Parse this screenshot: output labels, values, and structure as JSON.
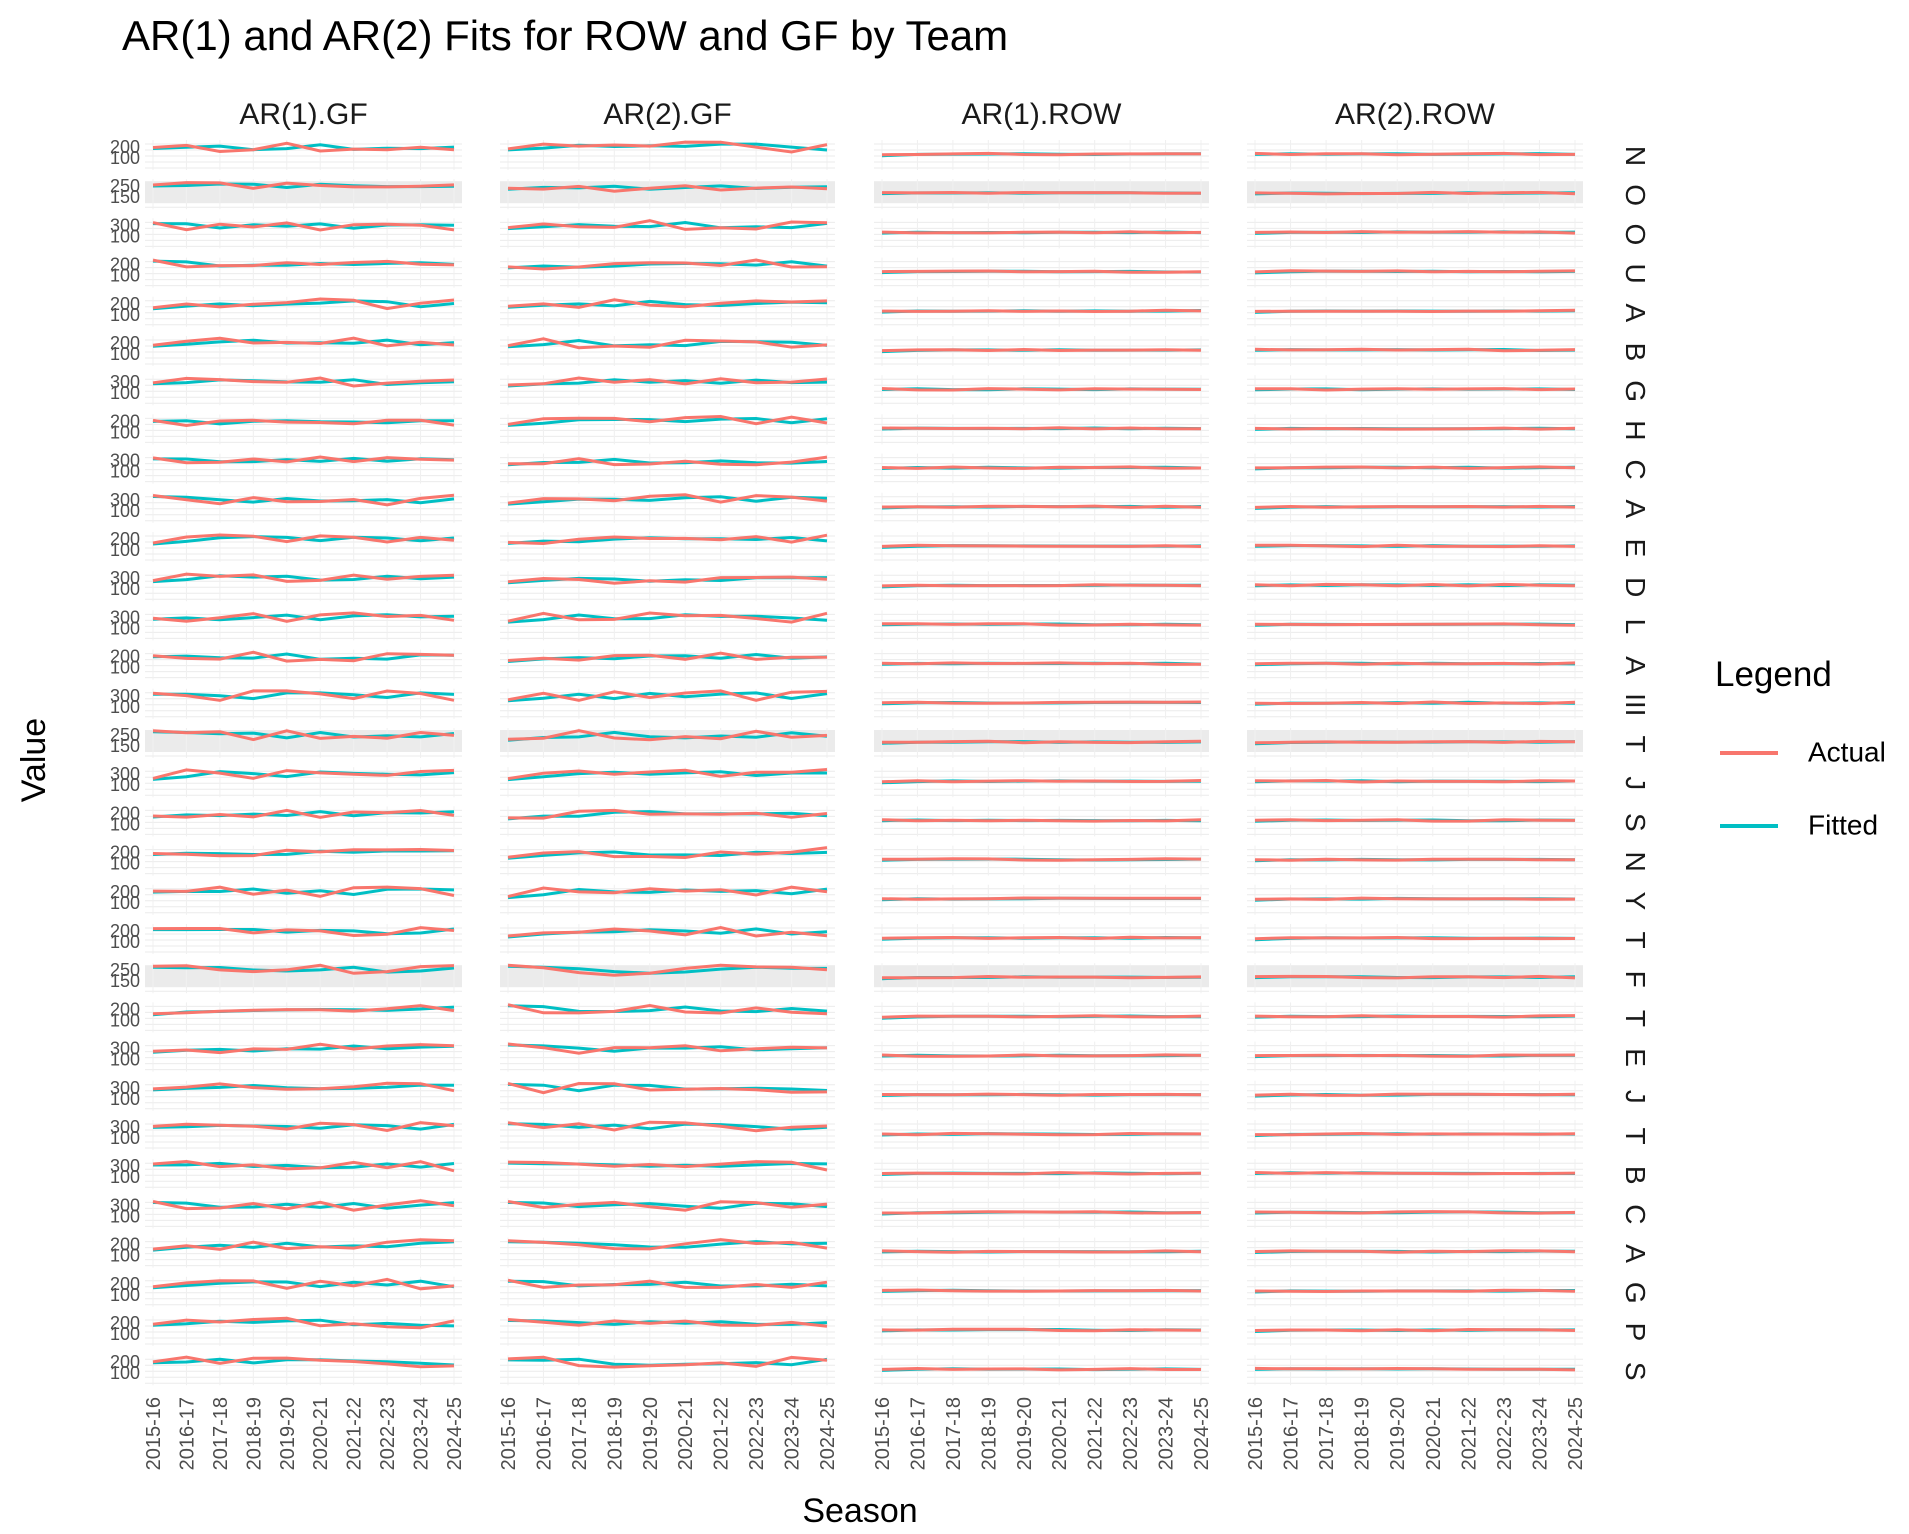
{
  "chart_data": {
    "type": "line",
    "title": "AR(1) and AR(2) Fits for ROW and GF by Team",
    "xlabel": "Season",
    "ylabel": "Value",
    "x": [
      "2015-16",
      "2016-17",
      "2017-18",
      "2018-19",
      "2019-20",
      "2020-21",
      "2021-22",
      "2022-23",
      "2023-24",
      "2024-25"
    ],
    "facet_columns": [
      "AR(1).GF",
      "AR(2).GF",
      "AR(1).ROW",
      "AR(2).ROW"
    ],
    "facet_rows": [
      "N",
      "O",
      "O",
      "U",
      "A",
      "B",
      "G",
      "H",
      "C",
      "A",
      "E",
      "D",
      "L",
      "A",
      "III",
      "T",
      "J",
      "S",
      "N",
      "Y",
      "T",
      "F",
      "T",
      "E",
      "J",
      "T",
      "B",
      "C",
      "A",
      "G",
      "P",
      "S"
    ],
    "y_tick_labels": {
      "gf_default": [
        "200",
        "100"
      ],
      "gf_variants": [
        [
          "200",
          "100"
        ],
        [
          "250",
          "150"
        ],
        [
          "300",
          "100"
        ],
        [
          "200",
          "100"
        ],
        [
          "200",
          "100"
        ],
        [
          "200",
          "100"
        ],
        [
          "300",
          "100"
        ],
        [
          "200",
          "100"
        ],
        [
          "300",
          "100"
        ],
        [
          "300",
          "100"
        ],
        [
          "200",
          "100"
        ],
        [
          "300",
          "100"
        ],
        [
          "300",
          "100"
        ],
        [
          "200",
          "100"
        ],
        [
          "300",
          "100"
        ],
        [
          "250",
          "150"
        ],
        [
          "300",
          "100"
        ],
        [
          "200",
          "100"
        ],
        [
          "200",
          "100"
        ],
        [
          "200",
          "100"
        ],
        [
          "200",
          "100"
        ],
        [
          "250",
          "150"
        ],
        [
          "200",
          "100"
        ],
        [
          "300",
          "100"
        ],
        [
          "300",
          "100"
        ],
        [
          "300",
          "100"
        ],
        [
          "300",
          "100"
        ],
        [
          "300",
          "100"
        ],
        [
          "200",
          "100"
        ],
        [
          "200",
          "100"
        ],
        [
          "200",
          "100"
        ],
        [
          "200",
          "100"
        ]
      ]
    },
    "series": [
      {
        "name": "Actual",
        "color": "#F8766D"
      },
      {
        "name": "Fitted",
        "color": "#00BFC4"
      }
    ],
    "legend_title": "Legend",
    "legend_placement": "right",
    "grid": true
  },
  "legend": {
    "title": "Legend",
    "items": [
      {
        "label": "Actual",
        "color": "#F8766D"
      },
      {
        "label": "Fitted",
        "color": "#00BFC4"
      }
    ]
  }
}
